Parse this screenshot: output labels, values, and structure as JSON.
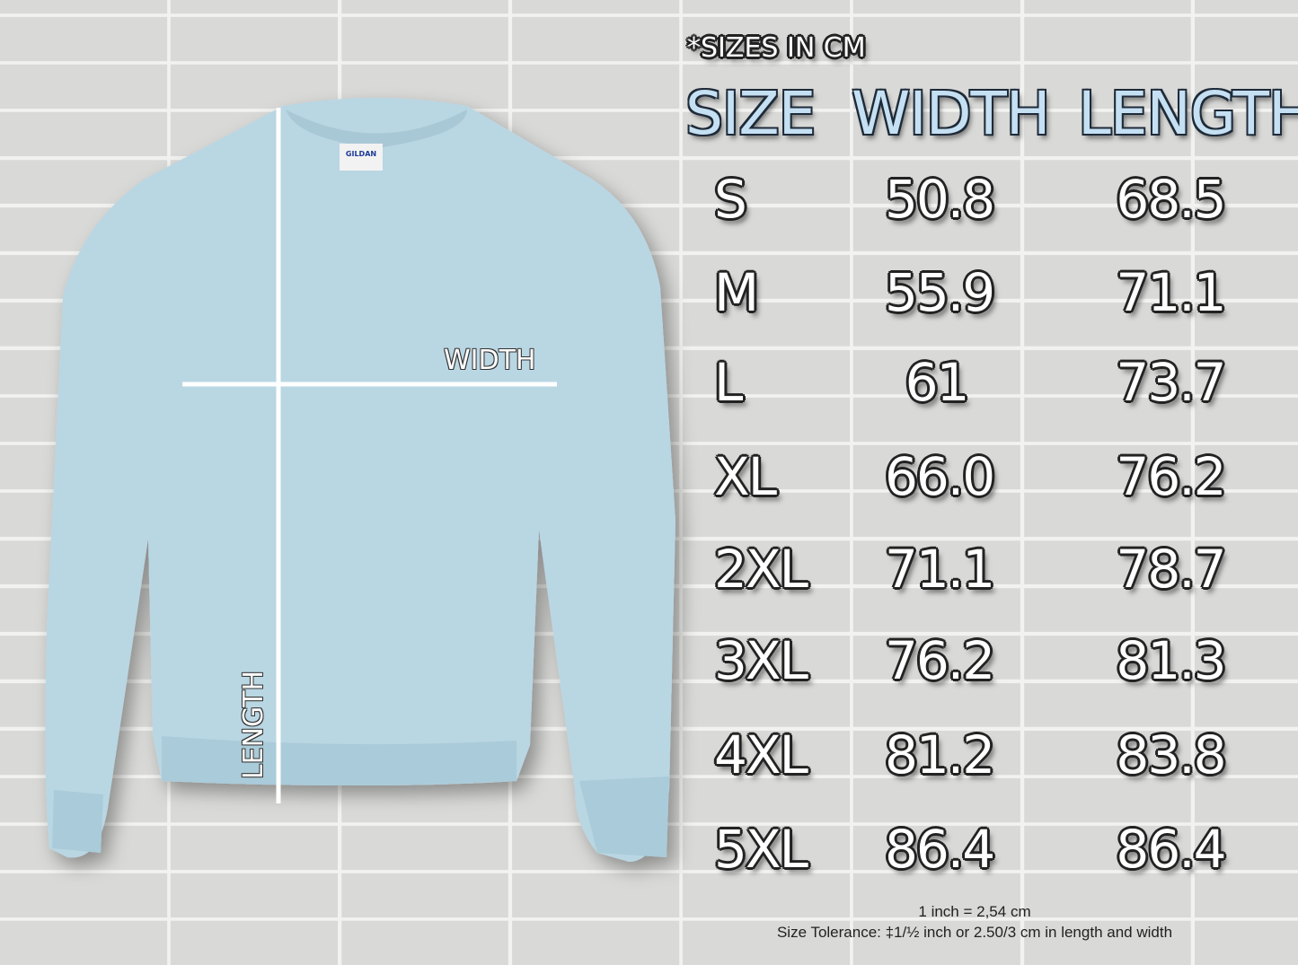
{
  "note": "*SIZES IN CM",
  "headers": {
    "size": "SIZE",
    "width": "WIDTH",
    "length": "LENGTH"
  },
  "rows": [
    {
      "size": "S",
      "width": "50.8",
      "length": "68.5"
    },
    {
      "size": "M",
      "width": "55.9",
      "length": "71.1"
    },
    {
      "size": "L",
      "width": "61",
      "length": "73.7"
    },
    {
      "size": "XL",
      "width": "66.0",
      "length": "76.2"
    },
    {
      "size": "2XL",
      "width": "71.1",
      "length": "78.7"
    },
    {
      "size": "3XL",
      "width": "76.2",
      "length": "81.3"
    },
    {
      "size": "4XL",
      "width": "81.2",
      "length": "83.8"
    },
    {
      "size": "5XL",
      "width": "86.4",
      "length": "86.4"
    }
  ],
  "diagram": {
    "width_label": "WIDTH",
    "length_label": "LENGTH",
    "brand_tag": "GILDAN",
    "shirt_color": "#b9d6e3"
  },
  "footer": {
    "conversion": "1 inch = 2,54 cm",
    "tolerance": "Size Tolerance: ‡1/½ inch or 2.50/3 cm in length and width"
  }
}
